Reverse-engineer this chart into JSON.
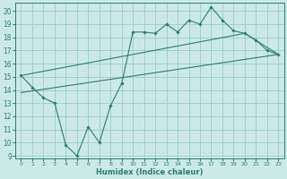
{
  "xlabel": "Humidex (Indice chaleur)",
  "background_color": "#cce9e8",
  "grid_color": "#99cccc",
  "line_color": "#2d7d6e",
  "xlim": [
    -0.5,
    23.5
  ],
  "ylim": [
    8.8,
    20.6
  ],
  "yticks": [
    9,
    10,
    11,
    12,
    13,
    14,
    15,
    16,
    17,
    18,
    19,
    20
  ],
  "xticks": [
    0,
    1,
    2,
    3,
    4,
    5,
    6,
    7,
    8,
    9,
    10,
    11,
    12,
    13,
    14,
    15,
    16,
    17,
    18,
    19,
    20,
    21,
    22,
    23
  ],
  "line1_x": [
    0,
    1,
    2,
    3,
    4,
    5,
    6,
    7,
    8,
    9,
    10,
    11,
    12,
    13,
    14,
    15,
    16,
    17,
    18,
    19,
    20,
    21,
    22,
    23
  ],
  "line1_y": [
    15.1,
    14.2,
    13.4,
    13.0,
    9.8,
    9.0,
    11.2,
    10.0,
    12.8,
    14.5,
    18.4,
    18.4,
    18.3,
    19.0,
    18.4,
    19.3,
    19.0,
    20.3,
    19.3,
    18.5,
    18.3,
    17.8,
    17.0,
    16.7
  ],
  "line2_x": [
    0,
    23
  ],
  "line2_y": [
    13.8,
    16.7
  ],
  "line3_x": [
    0,
    20,
    23
  ],
  "line3_y": [
    15.1,
    18.3,
    16.7
  ]
}
